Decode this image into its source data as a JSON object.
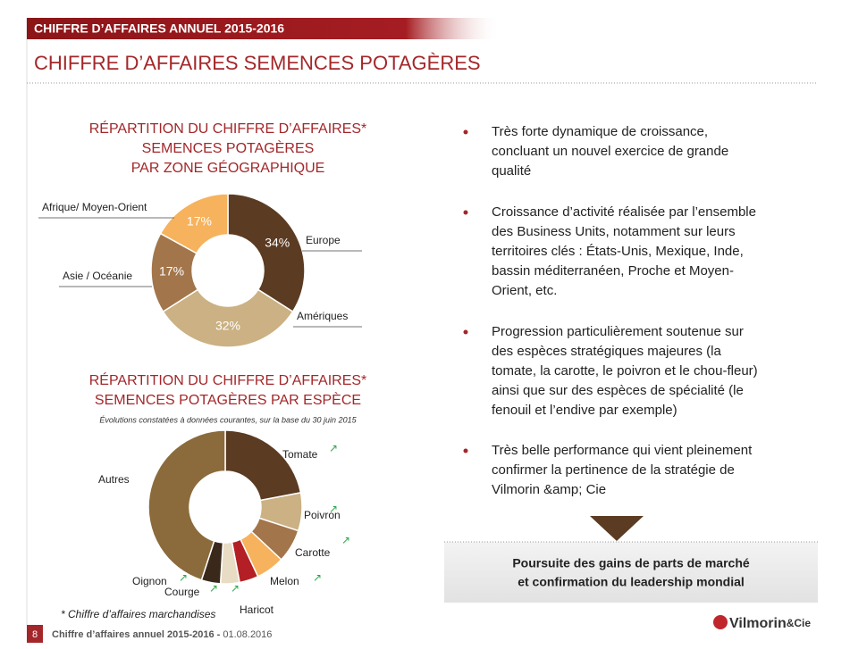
{
  "header": {
    "section": "CHIFFRE D’AFFAIRES ANNUEL 2015-2016",
    "title": "CHIFFRE D’AFFAIRES SEMENCES POTAGÈRES"
  },
  "chart_data": [
    {
      "type": "donut",
      "title": [
        "RÉPARTITION DU CHIFFRE D’AFFAIRES*",
        "SEMENCES POTAGÈRES",
        "PAR ZONE GÉOGRAPHIQUE"
      ],
      "categories": [
        "Europe",
        "Amériques",
        "Asie / Océanie",
        "Afrique/ Moyen-Orient"
      ],
      "values": [
        34,
        32,
        17,
        17
      ],
      "value_labels": [
        "34%",
        "32%",
        "17%",
        "17%"
      ],
      "colors": [
        "#5b3b22",
        "#cbb183",
        "#a2754b",
        "#f6b25c"
      ]
    },
    {
      "type": "donut",
      "title": [
        "RÉPARTITION DU CHIFFRE D’AFFAIRES*",
        "SEMENCES POTAGÈRES PAR ESPÈCE"
      ],
      "subtitle": "Évolutions constatées à données courantes, sur la base du 30 juin 2015",
      "categories": [
        "Tomate",
        "Poivron",
        "Carotte",
        "Melon",
        "Haricot",
        "Courge",
        "Oignon",
        "Autres"
      ],
      "values": [
        22,
        8,
        7,
        6,
        4,
        4,
        4,
        45
      ],
      "trends": [
        "↗",
        "↗",
        "↗",
        "↗",
        "↗",
        "↗",
        "↗",
        null
      ],
      "colors": [
        "#5b3b22",
        "#cbb183",
        "#a2754b",
        "#f6b25c",
        "#b31f24",
        "#e9dcc4",
        "#3a291b",
        "#8b6b3b"
      ]
    }
  ],
  "bullets": [
    [
      "Très forte dynamique de croissance,",
      "concluant un nouvel exercice de grande",
      "qualité"
    ],
    [
      "Croissance d’activité réalisée par l’ensemble",
      "des Business Units, notamment sur leurs",
      "territoires clés : États-Unis, Mexique, Inde,",
      "bassin méditerranéen, Proche et Moyen-",
      "Orient, etc."
    ],
    [
      "Progression particulièrement soutenue sur",
      "des espèces stratégiques majeures (la",
      "tomate, la carotte, le poivron et le chou-fleur)",
      "ainsi que sur des espèces de spécialité (le",
      "fenouil et l’endive par exemple)"
    ],
    [
      "Très belle performance qui vient pleinement",
      "confirmer la pertinence de la stratégie de",
      "Vilmorin &amp; Cie"
    ]
  ],
  "callout": [
    "Poursuite des gains de parts de marché",
    "et confirmation du leadership mondial"
  ],
  "footnote": "*  Chiffre d’affaires marchandises",
  "footer": {
    "page": "8",
    "label": "Chiffre d’affaires annuel 2015-2016 -",
    "date": "01.08.2016"
  },
  "logo": {
    "name": "Vilmorin",
    "suffix": "&Cie"
  }
}
